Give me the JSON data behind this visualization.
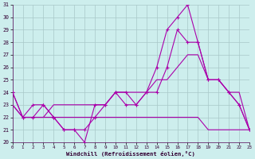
{
  "xlabel": "Windchill (Refroidissement éolien,°C)",
  "xlim_min": 0,
  "xlim_max": 23,
  "ylim_min": 20,
  "ylim_max": 31,
  "xticks": [
    0,
    1,
    2,
    3,
    4,
    5,
    6,
    7,
    8,
    9,
    10,
    11,
    12,
    13,
    14,
    15,
    16,
    17,
    18,
    19,
    20,
    21,
    22,
    23
  ],
  "yticks": [
    20,
    21,
    22,
    23,
    24,
    25,
    26,
    27,
    28,
    29,
    30,
    31
  ],
  "bg_color": "#cdeeed",
  "grid_color": "#a8c8c8",
  "line_color": "#aa00aa",
  "line1_y": [
    24,
    22,
    23,
    23,
    22,
    21,
    21,
    20,
    23,
    23,
    24,
    23,
    23,
    24,
    26,
    29,
    30,
    31,
    28,
    25,
    25,
    24,
    23,
    21
  ],
  "line2_y": [
    24,
    22,
    22,
    23,
    22,
    21,
    21,
    21,
    22,
    23,
    24,
    24,
    23,
    24,
    24,
    26,
    29,
    28,
    28,
    25,
    25,
    24,
    23,
    21
  ],
  "line3_y": [
    23,
    22,
    22,
    22,
    22,
    22,
    22,
    22,
    22,
    22,
    22,
    22,
    22,
    22,
    22,
    22,
    22,
    22,
    22,
    21,
    21,
    21,
    21,
    21
  ],
  "line4_y": [
    23,
    22,
    22,
    22,
    23,
    23,
    23,
    23,
    23,
    23,
    24,
    24,
    24,
    24,
    25,
    25,
    26,
    27,
    27,
    25,
    25,
    24,
    24,
    21
  ]
}
